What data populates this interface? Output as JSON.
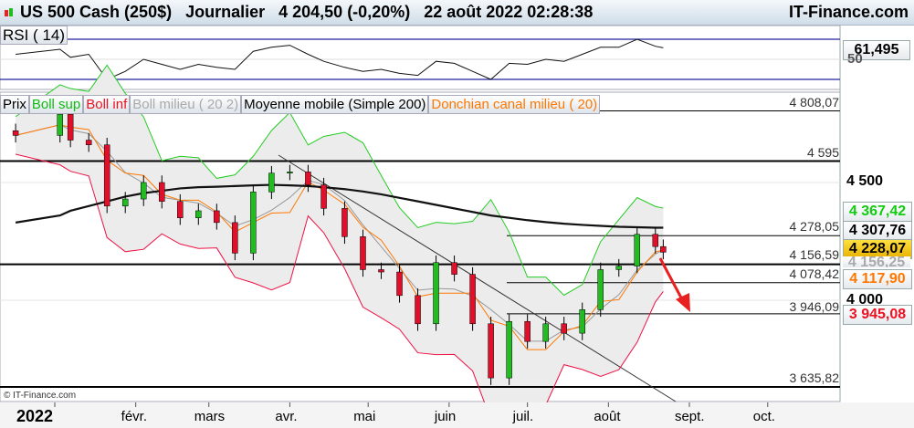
{
  "header": {
    "title": "US 500 Cash (250$)   Journalier   4 204,50 (-0,20%)   22 août 2022 02:28:38",
    "site": "IT-Finance.com"
  },
  "rsi": {
    "label": "RSI ( 14)",
    "value": "61,495",
    "level_50": "50"
  },
  "legend": {
    "prix": "Prix",
    "boll_sup": "Boll sup",
    "boll_inf": "Boll inf",
    "boll_mid": "Boll milieu ( 20 2)",
    "sma": "Moyenne mobile (Simple 200)",
    "donchian": "Donchian canal milieu ( 20)"
  },
  "levels": [
    "4 808,07",
    "4 595",
    "4 278,05",
    "4 156,59",
    "4 078,42",
    "3 946,09",
    "3 635,82"
  ],
  "tags": {
    "boll_sup": "4 367,42",
    "sma": "4 307,76",
    "price": "4 228,07",
    "boll_mid": "4 156,25",
    "donchian": "4 117,90",
    "boll_inf": "3 945,08"
  },
  "copyright": "© IT-Finance.com",
  "colors": {
    "up": "#22bb22",
    "down": "#e0102a",
    "boll_sup": "#22cc22",
    "boll_inf": "#ee1144",
    "donchian": "#ff7700",
    "sma": "#111111",
    "price_tag": "#f5c000"
  },
  "chart_data": {
    "type": "candlestick",
    "y_ticks": [
      "4 500",
      "4 000"
    ],
    "x_ticks": [
      "2022",
      "févr.",
      "mars",
      "avr.",
      "mai",
      "juin",
      "juil.",
      "août",
      "sept.",
      "oct."
    ],
    "dates": [
      "2021-12-17",
      "2022-01-03",
      "2022-01-07",
      "2022-01-14",
      "2022-01-21",
      "2022-01-28",
      "2022-02-04",
      "2022-02-11",
      "2022-02-18",
      "2022-02-25",
      "2022-03-04",
      "2022-03-11",
      "2022-03-18",
      "2022-03-25",
      "2022-04-01",
      "2022-04-08",
      "2022-04-14",
      "2022-04-22",
      "2022-04-29",
      "2022-05-06",
      "2022-05-13",
      "2022-05-20",
      "2022-05-27",
      "2022-06-03",
      "2022-06-10",
      "2022-06-17",
      "2022-06-24",
      "2022-07-01",
      "2022-07-08",
      "2022-07-15",
      "2022-07-22",
      "2022-07-29",
      "2022-08-05",
      "2022-08-12",
      "2022-08-19",
      "2022-08-22"
    ],
    "close": [
      4700,
      4790,
      4680,
      4660,
      4400,
      4430,
      4500,
      4420,
      4350,
      4380,
      4330,
      4200,
      4460,
      4540,
      4545,
      4490,
      4390,
      4270,
      4130,
      4120,
      4020,
      3900,
      4160,
      4110,
      3900,
      3670,
      3910,
      3825,
      3900,
      3860,
      3960,
      4130,
      4145,
      4280,
      4228,
      4204
    ],
    "sma200": [
      4330,
      4360,
      4380,
      4400,
      4420,
      4440,
      4455,
      4465,
      4475,
      4480,
      4482,
      4485,
      4488,
      4490,
      4488,
      4485,
      4480,
      4472,
      4462,
      4450,
      4435,
      4420,
      4405,
      4390,
      4375,
      4360,
      4350,
      4340,
      4332,
      4325,
      4320,
      4316,
      4312,
      4310,
      4308,
      4308
    ],
    "rsi": [
      55,
      60,
      52,
      55,
      30,
      38,
      50,
      45,
      40,
      45,
      42,
      40,
      58,
      62,
      64,
      55,
      48,
      42,
      38,
      40,
      36,
      34,
      48,
      46,
      38,
      30,
      46,
      45,
      50,
      48,
      55,
      62,
      62,
      70,
      63,
      61.5
    ],
    "rsi_levels": [
      30,
      50,
      70
    ]
  }
}
